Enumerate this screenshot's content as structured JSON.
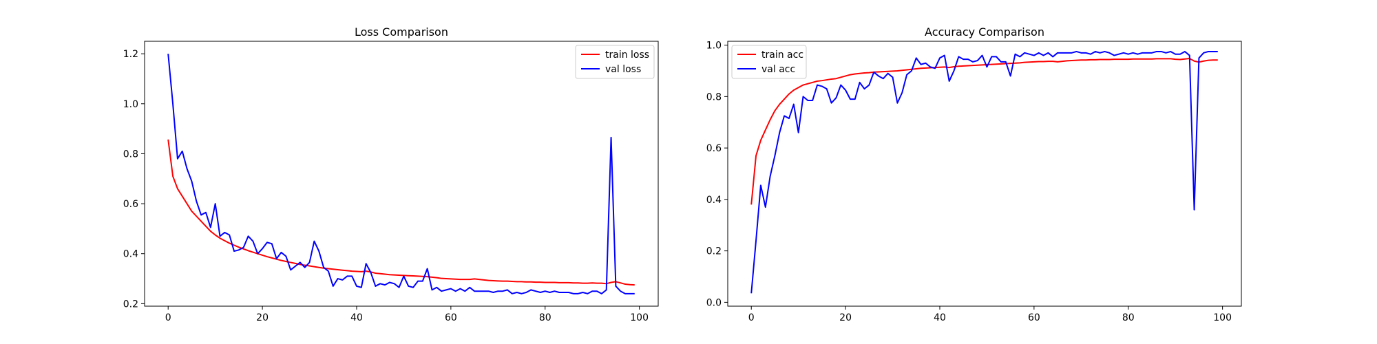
{
  "chart_data": [
    {
      "type": "line",
      "title": "Loss Comparison",
      "xlabel": "",
      "ylabel": "",
      "xlim": [
        -5,
        104
      ],
      "ylim": [
        0.19,
        1.25
      ],
      "xticks": [
        0,
        20,
        40,
        60,
        80,
        100
      ],
      "yticks": [
        0.2,
        0.4,
        0.6,
        0.8,
        1.0,
        1.2
      ],
      "xtick_labels": [
        "0",
        "20",
        "40",
        "60",
        "80",
        "100"
      ],
      "ytick_labels": [
        "0.2",
        "0.4",
        "0.6",
        "0.8",
        "1.0",
        "1.2"
      ],
      "grid": false,
      "legend_position": "top-right",
      "series": [
        {
          "name": "train loss",
          "color": "#ff0000",
          "y": [
            0.857,
            0.71,
            0.66,
            0.63,
            0.6,
            0.57,
            0.55,
            0.53,
            0.51,
            0.49,
            0.475,
            0.462,
            0.452,
            0.442,
            0.434,
            0.426,
            0.419,
            0.412,
            0.406,
            0.4,
            0.394,
            0.388,
            0.383,
            0.378,
            0.373,
            0.369,
            0.365,
            0.361,
            0.357,
            0.354,
            0.351,
            0.348,
            0.345,
            0.342,
            0.34,
            0.338,
            0.336,
            0.334,
            0.332,
            0.33,
            0.329,
            0.328,
            0.33,
            0.327,
            0.322,
            0.32,
            0.318,
            0.316,
            0.315,
            0.314,
            0.313,
            0.312,
            0.311,
            0.31,
            0.309,
            0.308,
            0.306,
            0.304,
            0.301,
            0.3,
            0.299,
            0.298,
            0.297,
            0.297,
            0.297,
            0.299,
            0.297,
            0.295,
            0.293,
            0.292,
            0.291,
            0.29,
            0.29,
            0.289,
            0.288,
            0.288,
            0.287,
            0.287,
            0.286,
            0.286,
            0.285,
            0.285,
            0.285,
            0.284,
            0.284,
            0.284,
            0.283,
            0.283,
            0.282,
            0.282,
            0.283,
            0.282,
            0.282,
            0.28,
            0.285,
            0.288,
            0.283,
            0.278,
            0.276,
            0.275
          ]
        },
        {
          "name": "val loss",
          "color": "#0000ff",
          "y": [
            1.2,
            1.0,
            0.78,
            0.81,
            0.74,
            0.69,
            0.61,
            0.555,
            0.565,
            0.505,
            0.6,
            0.47,
            0.485,
            0.475,
            0.41,
            0.415,
            0.425,
            0.47,
            0.45,
            0.4,
            0.42,
            0.445,
            0.44,
            0.38,
            0.405,
            0.39,
            0.335,
            0.35,
            0.365,
            0.345,
            0.365,
            0.45,
            0.41,
            0.345,
            0.33,
            0.27,
            0.3,
            0.295,
            0.31,
            0.31,
            0.27,
            0.265,
            0.36,
            0.325,
            0.27,
            0.28,
            0.275,
            0.285,
            0.28,
            0.265,
            0.31,
            0.27,
            0.265,
            0.29,
            0.29,
            0.34,
            0.255,
            0.265,
            0.25,
            0.255,
            0.26,
            0.25,
            0.26,
            0.25,
            0.265,
            0.25,
            0.25,
            0.25,
            0.25,
            0.245,
            0.25,
            0.25,
            0.255,
            0.24,
            0.245,
            0.24,
            0.245,
            0.255,
            0.25,
            0.245,
            0.25,
            0.245,
            0.25,
            0.245,
            0.245,
            0.245,
            0.24,
            0.24,
            0.245,
            0.24,
            0.25,
            0.25,
            0.24,
            0.255,
            0.865,
            0.27,
            0.25,
            0.24,
            0.24,
            0.24
          ]
        }
      ]
    },
    {
      "type": "line",
      "title": "Accuracy Comparison",
      "xlabel": "",
      "ylabel": "",
      "xlim": [
        -5,
        104
      ],
      "ylim": [
        -0.015,
        1.015
      ],
      "xticks": [
        0,
        20,
        40,
        60,
        80,
        100
      ],
      "yticks": [
        0.0,
        0.2,
        0.4,
        0.6,
        0.8,
        1.0
      ],
      "xtick_labels": [
        "0",
        "20",
        "40",
        "60",
        "80",
        "100"
      ],
      "ytick_labels": [
        "0.0",
        "0.2",
        "0.4",
        "0.6",
        "0.8",
        "1.0"
      ],
      "grid": false,
      "legend_position": "top-left",
      "series": [
        {
          "name": "train acc",
          "color": "#ff0000",
          "y": [
            0.38,
            0.57,
            0.63,
            0.67,
            0.71,
            0.745,
            0.77,
            0.79,
            0.81,
            0.825,
            0.835,
            0.845,
            0.85,
            0.855,
            0.86,
            0.862,
            0.865,
            0.868,
            0.87,
            0.875,
            0.88,
            0.885,
            0.888,
            0.89,
            0.892,
            0.893,
            0.895,
            0.896,
            0.897,
            0.898,
            0.899,
            0.9,
            0.902,
            0.904,
            0.906,
            0.908,
            0.91,
            0.911,
            0.912,
            0.913,
            0.914,
            0.915,
            0.913,
            0.916,
            0.918,
            0.919,
            0.92,
            0.921,
            0.922,
            0.923,
            0.924,
            0.925,
            0.926,
            0.927,
            0.928,
            0.929,
            0.93,
            0.931,
            0.933,
            0.934,
            0.935,
            0.936,
            0.936,
            0.937,
            0.937,
            0.935,
            0.937,
            0.939,
            0.94,
            0.941,
            0.942,
            0.942,
            0.943,
            0.943,
            0.944,
            0.944,
            0.944,
            0.945,
            0.945,
            0.945,
            0.945,
            0.946,
            0.946,
            0.946,
            0.946,
            0.946,
            0.947,
            0.947,
            0.947,
            0.947,
            0.945,
            0.944,
            0.946,
            0.948,
            0.938,
            0.934,
            0.938,
            0.941,
            0.942,
            0.942
          ]
        },
        {
          "name": "val acc",
          "color": "#0000ff",
          "y": [
            0.035,
            0.24,
            0.455,
            0.37,
            0.49,
            0.57,
            0.66,
            0.725,
            0.715,
            0.77,
            0.66,
            0.8,
            0.785,
            0.785,
            0.845,
            0.84,
            0.83,
            0.775,
            0.795,
            0.845,
            0.825,
            0.79,
            0.79,
            0.855,
            0.83,
            0.845,
            0.895,
            0.88,
            0.87,
            0.89,
            0.875,
            0.775,
            0.815,
            0.885,
            0.9,
            0.95,
            0.925,
            0.93,
            0.915,
            0.91,
            0.95,
            0.96,
            0.86,
            0.9,
            0.955,
            0.945,
            0.945,
            0.935,
            0.94,
            0.96,
            0.915,
            0.955,
            0.955,
            0.935,
            0.935,
            0.88,
            0.965,
            0.955,
            0.97,
            0.965,
            0.96,
            0.97,
            0.96,
            0.97,
            0.955,
            0.97,
            0.97,
            0.97,
            0.97,
            0.975,
            0.97,
            0.97,
            0.965,
            0.975,
            0.97,
            0.975,
            0.97,
            0.96,
            0.965,
            0.97,
            0.965,
            0.97,
            0.965,
            0.97,
            0.97,
            0.97,
            0.975,
            0.975,
            0.97,
            0.975,
            0.965,
            0.965,
            0.975,
            0.96,
            0.36,
            0.95,
            0.97,
            0.975,
            0.975,
            0.975
          ]
        }
      ]
    }
  ]
}
